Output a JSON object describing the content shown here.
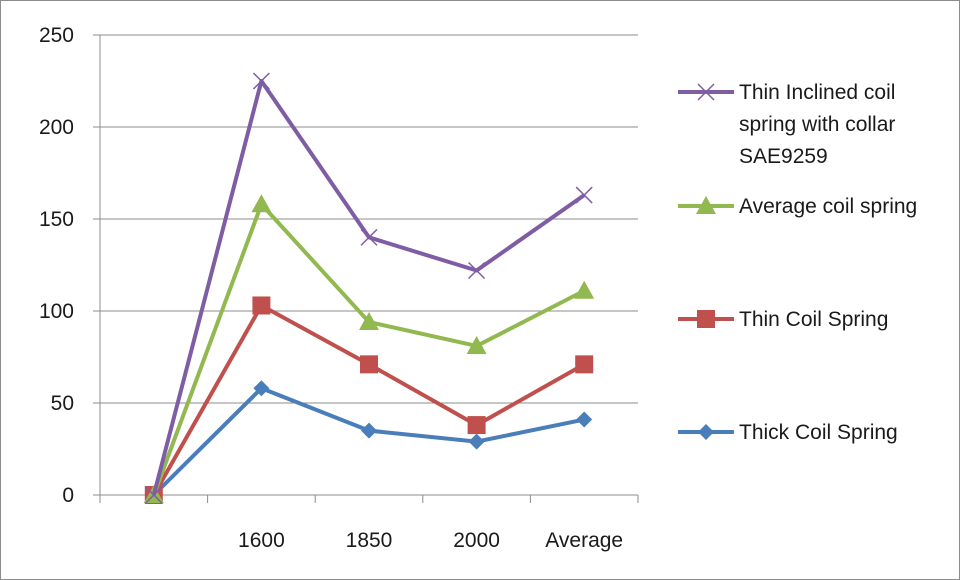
{
  "chart_data": {
    "type": "line",
    "categories": [
      "",
      "1600",
      "1850",
      "2000",
      "Average"
    ],
    "ylim": [
      0,
      250
    ],
    "yticks": [
      0,
      50,
      100,
      150,
      200,
      250
    ],
    "grid": true,
    "legend_position": "right",
    "series": [
      {
        "name": "Thin Inclined coil spring with collar SAE9259",
        "legend_lines": [
          "Thin Inclined coil",
          "spring with collar",
          "SAE9259"
        ],
        "color": "#7f5da5",
        "marker": "x",
        "values": [
          0,
          225,
          140,
          122,
          163
        ]
      },
      {
        "name": "Average coil spring",
        "legend_lines": [
          "Average coil spring"
        ],
        "color": "#92b850",
        "marker": "triangle",
        "values": [
          0,
          158,
          94,
          81,
          111
        ]
      },
      {
        "name": "Thin Coil Spring",
        "legend_lines": [
          "Thin Coil Spring"
        ],
        "color": "#c0504d",
        "marker": "square",
        "values": [
          0,
          103,
          71,
          38,
          71
        ]
      },
      {
        "name": "Thick Coil Spring",
        "legend_lines": [
          "Thick Coil Spring"
        ],
        "color": "#4a7ebb",
        "marker": "diamond",
        "values": [
          0,
          58,
          35,
          29,
          41
        ]
      }
    ]
  }
}
